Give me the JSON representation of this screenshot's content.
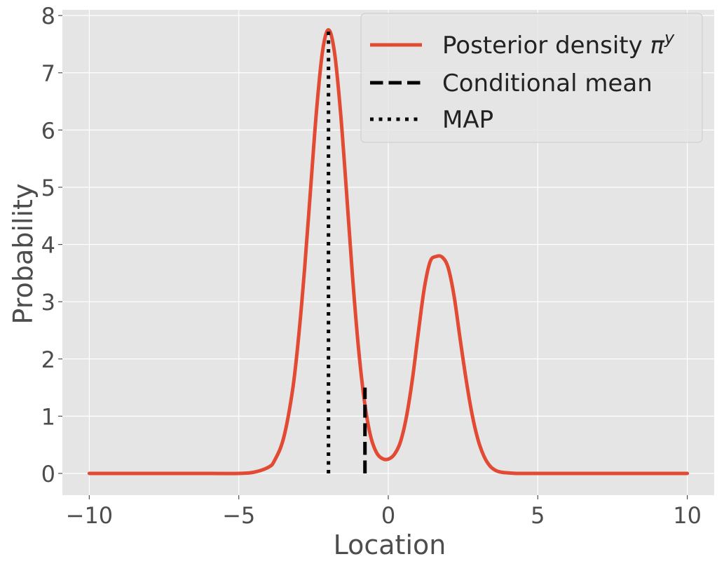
{
  "chart_data": {
    "type": "line",
    "title": "",
    "xlabel": "Location",
    "ylabel": "Probability",
    "xlim": [
      -10.9,
      10.9
    ],
    "ylim": [
      -0.38,
      8.1
    ],
    "grid": true,
    "xticks": [
      -10,
      -5,
      0,
      5,
      10
    ],
    "xtick_labels": [
      "−10",
      "−5",
      "0",
      "5",
      "10"
    ],
    "yticks": [
      0,
      1,
      2,
      3,
      4,
      5,
      6,
      7,
      8
    ],
    "ytick_labels": [
      "0",
      "1",
      "2",
      "3",
      "4",
      "5",
      "6",
      "7",
      "8"
    ],
    "series": [
      {
        "name": "Posterior density",
        "name_symbol": "π",
        "name_superscript": "y",
        "style": "solid",
        "color": "#E24A33",
        "x": [
          -10,
          -8,
          -6,
          -5,
          -4.5,
          -4,
          -3.8,
          -3.5,
          -3.2,
          -3.0,
          -2.8,
          -2.6,
          -2.4,
          -2.2,
          -2.0,
          -1.8,
          -1.6,
          -1.4,
          -1.2,
          -1.0,
          -0.8,
          -0.6,
          -0.4,
          -0.2,
          0.0,
          0.2,
          0.4,
          0.6,
          0.8,
          1.0,
          1.2,
          1.4,
          1.6,
          1.8,
          2.0,
          2.2,
          2.4,
          2.6,
          2.8,
          3.0,
          3.2,
          3.4,
          3.6,
          3.8,
          4.0,
          4.3,
          4.6,
          5.0,
          6,
          8,
          10
        ],
        "y": [
          0,
          0,
          0,
          0.0,
          0.02,
          0.11,
          0.23,
          0.62,
          1.46,
          2.38,
          3.57,
          4.96,
          6.34,
          7.37,
          7.75,
          7.36,
          6.33,
          4.94,
          3.47,
          2.21,
          1.27,
          0.67,
          0.37,
          0.26,
          0.25,
          0.33,
          0.54,
          0.97,
          1.62,
          2.44,
          3.22,
          3.7,
          3.79,
          3.78,
          3.6,
          3.1,
          2.36,
          1.65,
          1.04,
          0.59,
          0.3,
          0.13,
          0.05,
          0.02,
          0.01,
          0.0,
          0.0,
          0,
          0,
          0,
          0
        ]
      },
      {
        "name": "Conditional mean",
        "style": "dashed",
        "color": "#000000",
        "x": [
          -0.78,
          -0.78
        ],
        "y": [
          0,
          1.5
        ]
      },
      {
        "name": "MAP",
        "style": "dotted",
        "color": "#000000",
        "x": [
          -2.0,
          -2.0
        ],
        "y": [
          0,
          7.75
        ]
      }
    ],
    "legend": {
      "position": "top-right"
    },
    "colors": {
      "background": "#E5E5E5",
      "grid": "#FFFFFF",
      "text": "#4D4D4D"
    }
  }
}
